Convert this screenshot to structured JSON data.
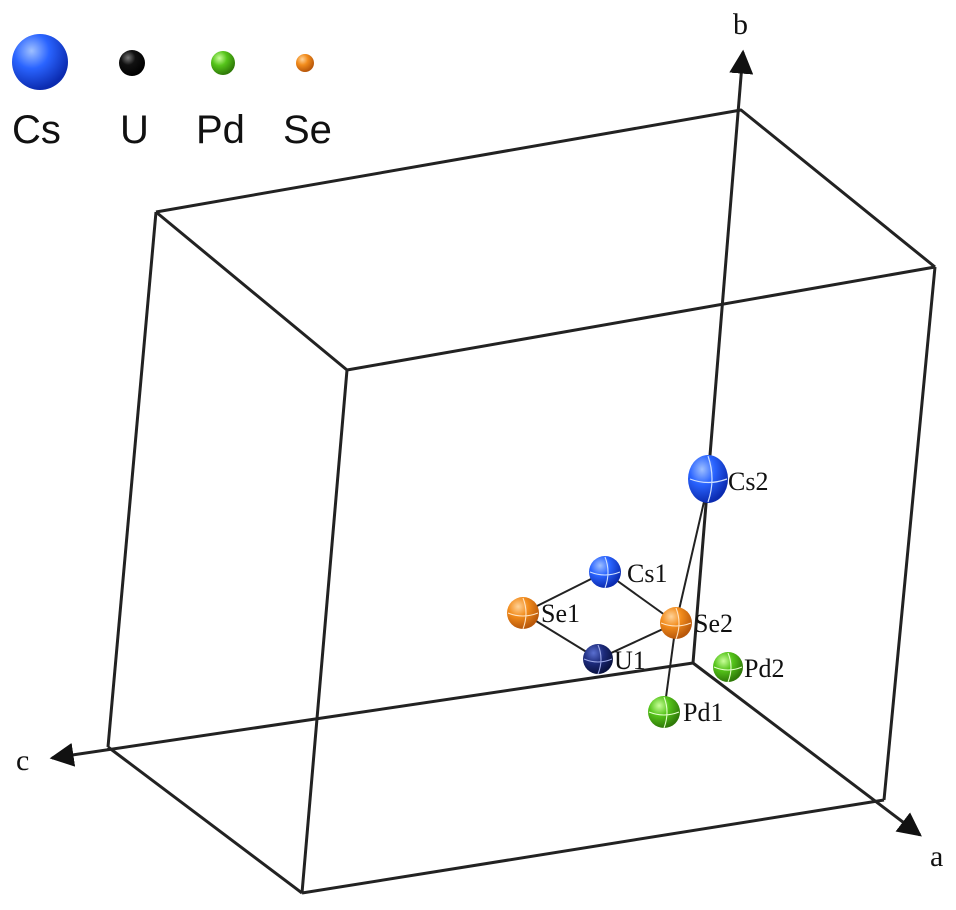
{
  "legend": [
    {
      "element": "Cs",
      "color": "#1f5cff"
    },
    {
      "element": "U",
      "color": "#111111"
    },
    {
      "element": "Pd",
      "color": "#59c61a"
    },
    {
      "element": "Se",
      "color": "#f28c1c"
    }
  ],
  "axes": {
    "a": "a",
    "b": "b",
    "c": "c"
  },
  "atoms": {
    "cs1": {
      "label": "Cs1",
      "color": "#2c6bff"
    },
    "cs2": {
      "label": "Cs2",
      "color": "#2c6bff"
    },
    "se1": {
      "label": "Se1",
      "color": "#f07a1e"
    },
    "se2": {
      "label": "Se2",
      "color": "#f07a1e"
    },
    "u1": {
      "label": "U1",
      "color": "#1c2a7a"
    },
    "pd1": {
      "label": "Pd1",
      "color": "#5ccf1c"
    },
    "pd2": {
      "label": "Pd2",
      "color": "#5ccf1c"
    }
  }
}
